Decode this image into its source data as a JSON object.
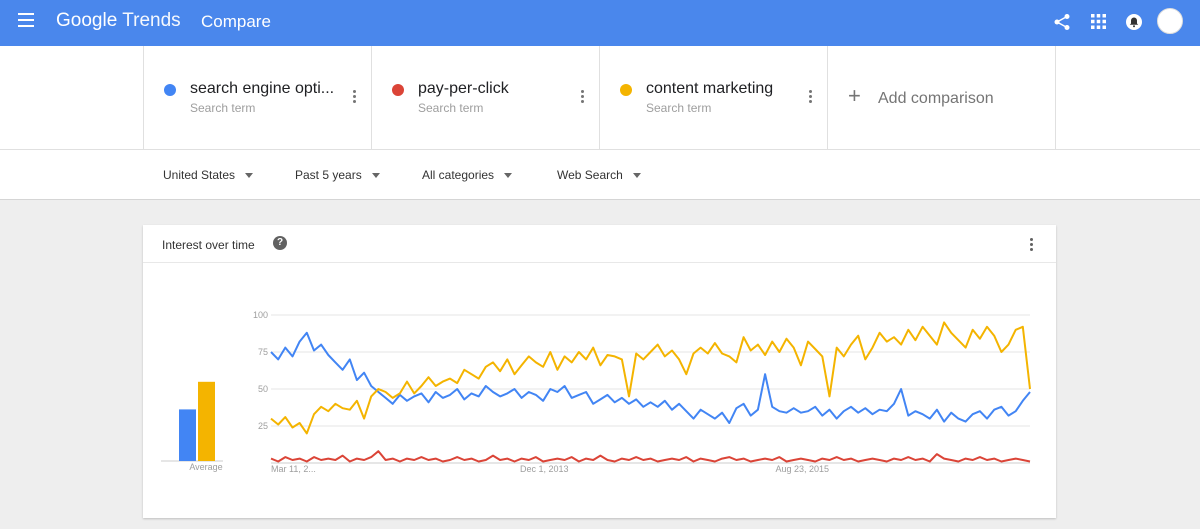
{
  "app": {
    "logo_google": "Google",
    "logo_trends": "Trends",
    "page_title": "Compare"
  },
  "header_icons": [
    "menu-icon",
    "share-icon",
    "apps-icon",
    "notification-icon",
    "avatar"
  ],
  "terms": [
    {
      "name": "search engine opti...",
      "sub": "Search term",
      "color": "#4285f4"
    },
    {
      "name": "pay-per-click",
      "sub": "Search term",
      "color": "#db4437"
    },
    {
      "name": "content marketing",
      "sub": "Search term",
      "color": "#f4b400"
    }
  ],
  "add_comparison": "Add comparison",
  "filters": {
    "region": "United States",
    "time": "Past 5 years",
    "category": "All categories",
    "property": "Web Search"
  },
  "card": {
    "title": "Interest over time",
    "help": "?"
  },
  "chart_data": {
    "type": "line",
    "ylim": [
      0,
      100
    ],
    "yticks": [
      "100",
      "75",
      "50",
      "25"
    ],
    "xtick_labels": [
      "Mar 11, 2...",
      "Dec 1, 2013",
      "Aug 23, 2015"
    ],
    "average_label": "Average",
    "averages": [
      {
        "name": "search engine optimization",
        "value": 43,
        "color": "#4285f4"
      },
      {
        "name": "content marketing",
        "value": 66,
        "color": "#f4b400"
      }
    ],
    "series": [
      {
        "name": "search engine optimization",
        "color": "#4285f4",
        "values": [
          75,
          70,
          78,
          72,
          82,
          88,
          76,
          80,
          73,
          68,
          63,
          70,
          56,
          61,
          52,
          48,
          44,
          40,
          46,
          42,
          45,
          47,
          41,
          48,
          44,
          46,
          50,
          43,
          47,
          45,
          52,
          48,
          45,
          47,
          50,
          44,
          48,
          46,
          42,
          50,
          48,
          52,
          44,
          46,
          48,
          40,
          43,
          46,
          41,
          44,
          40,
          43,
          38,
          41,
          38,
          42,
          36,
          40,
          35,
          30,
          36,
          33,
          30,
          34,
          27,
          37,
          40,
          32,
          36,
          60,
          38,
          35,
          34,
          37,
          34,
          35,
          38,
          32,
          36,
          30,
          35,
          38,
          34,
          37,
          33,
          36,
          35,
          40,
          50,
          32,
          35,
          33,
          30,
          36,
          28,
          34,
          30,
          28,
          33,
          35,
          30,
          36,
          38,
          32,
          35,
          42,
          48
        ]
      },
      {
        "name": "content marketing",
        "color": "#f4b400",
        "values": [
          30,
          26,
          31,
          24,
          27,
          20,
          33,
          38,
          35,
          40,
          37,
          36,
          42,
          30,
          45,
          50,
          48,
          44,
          47,
          55,
          47,
          52,
          58,
          52,
          55,
          57,
          54,
          63,
          60,
          57,
          65,
          68,
          62,
          70,
          60,
          66,
          72,
          68,
          65,
          75,
          63,
          72,
          68,
          75,
          70,
          78,
          66,
          73,
          72,
          70,
          45,
          74,
          70,
          75,
          80,
          72,
          76,
          70,
          60,
          74,
          78,
          74,
          81,
          74,
          72,
          68,
          85,
          76,
          80,
          73,
          82,
          75,
          84,
          78,
          66,
          82,
          77,
          72,
          45,
          78,
          72,
          80,
          86,
          70,
          78,
          88,
          82,
          85,
          80,
          90,
          83,
          92,
          86,
          80,
          95,
          88,
          83,
          78,
          90,
          84,
          92,
          86,
          75,
          80,
          90,
          92,
          50
        ]
      },
      {
        "name": "pay-per-click",
        "color": "#db4437",
        "values": [
          3,
          1,
          4,
          2,
          3,
          1,
          4,
          2,
          3,
          2,
          5,
          1,
          3,
          2,
          4,
          8,
          2,
          3,
          1,
          3,
          2,
          4,
          2,
          3,
          1,
          2,
          4,
          2,
          3,
          1,
          2,
          5,
          2,
          3,
          1,
          3,
          2,
          4,
          1,
          2,
          3,
          2,
          4,
          1,
          3,
          2,
          5,
          2,
          1,
          3,
          2,
          4,
          2,
          3,
          1,
          2,
          3,
          2,
          4,
          1,
          3,
          2,
          1,
          3,
          4,
          2,
          3,
          1,
          2,
          3,
          2,
          4,
          1,
          2,
          3,
          2,
          1,
          3,
          2,
          4,
          2,
          3,
          1,
          2,
          3,
          2,
          1,
          3,
          2,
          4,
          2,
          3,
          1,
          6,
          3,
          2,
          1,
          3,
          2,
          4,
          2,
          3,
          1,
          2,
          3,
          2,
          1
        ]
      }
    ]
  }
}
